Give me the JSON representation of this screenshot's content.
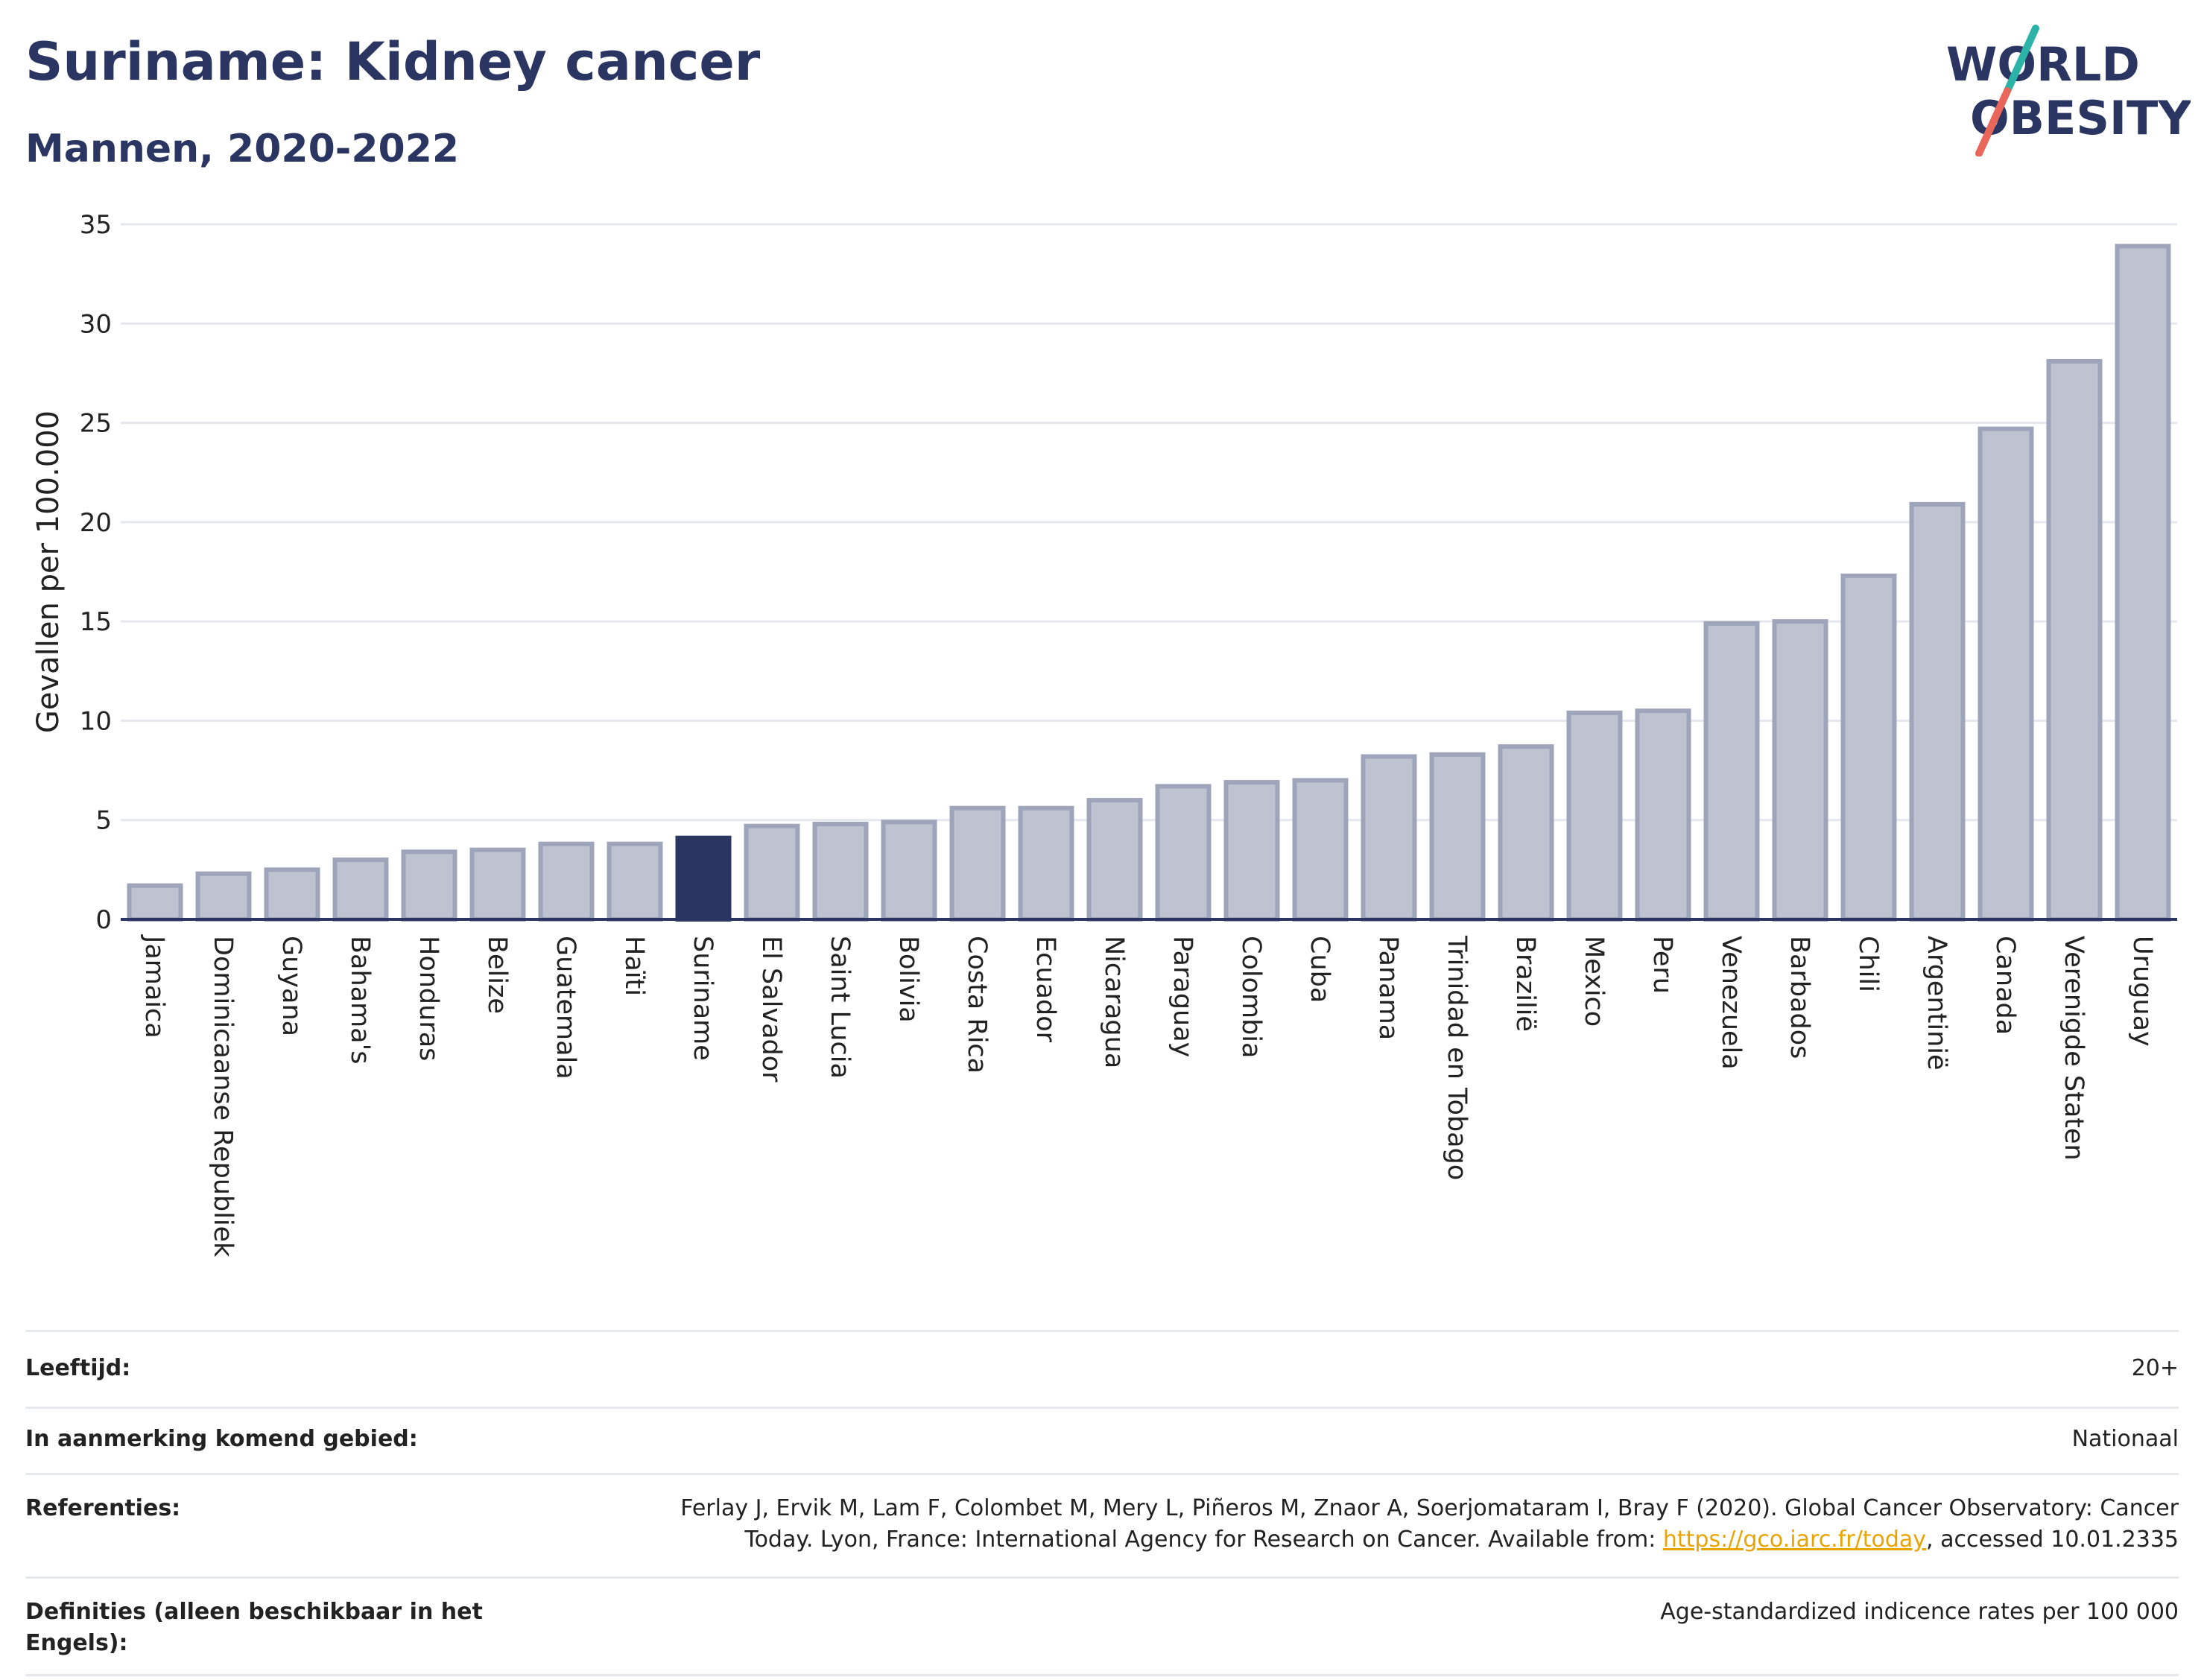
{
  "header": {
    "title": "Suriname: Kidney cancer",
    "subtitle": "Mannen, 2020-2022"
  },
  "logo": {
    "line1": "WORLD",
    "line2": "OBESITY"
  },
  "colors": {
    "bar": "#bfc3d1",
    "bar_stroke": "#9ea4b9",
    "highlight": "#2a3561",
    "grid": "#e5e7ee",
    "axis": "#2a3561",
    "logo_slash_top": "#2ab3a6",
    "logo_slash_bottom": "#e8675a"
  },
  "chart_data": {
    "type": "bar",
    "ylabel": "Gevallen per 100.000",
    "ylim": [
      0,
      35
    ],
    "yticks": [
      0,
      5,
      10,
      15,
      20,
      25,
      30,
      35
    ],
    "grid": true,
    "highlight": "Suriname",
    "categories": [
      "Jamaica",
      "Dominicaanse Republiek",
      "Guyana",
      "Bahama's",
      "Honduras",
      "Belize",
      "Guatemala",
      "Haïti",
      "Suriname",
      "El Salvador",
      "Saint Lucia",
      "Bolivia",
      "Costa Rica",
      "Ecuador",
      "Nicaragua",
      "Paraguay",
      "Colombia",
      "Cuba",
      "Panama",
      "Trinidad en Tobago",
      "Brazilië",
      "Mexico",
      "Peru",
      "Venezuela",
      "Barbados",
      "Chili",
      "Argentinië",
      "Canada",
      "Verenigde Staten",
      "Uruguay"
    ],
    "values": [
      1.7,
      2.3,
      2.5,
      3.0,
      3.4,
      3.5,
      3.8,
      3.8,
      4.1,
      4.7,
      4.8,
      4.9,
      5.6,
      5.6,
      6.0,
      6.7,
      6.9,
      7.0,
      8.2,
      8.3,
      8.7,
      10.4,
      10.5,
      14.9,
      15.0,
      17.3,
      20.9,
      24.7,
      28.1,
      33.9
    ]
  },
  "info": {
    "age_label": "Leeftijd:",
    "age_value": "20+",
    "area_label": "In aanmerking komend gebied:",
    "area_value": "Nationaal",
    "ref_label": "Referenties:",
    "ref_text_1": "Ferlay J, Ervik M, Lam F, Colombet M, Mery L, Piñeros M, Znaor A, Soerjomataram I, Bray F (2020). Global Cancer Observatory: Cancer",
    "ref_text_2": "Today. Lyon, France: International Agency for Research on Cancer. Available from:",
    "ref_link": "https://gco.iarc.fr/today",
    "ref_text_3": ", accessed 10.01.2335",
    "def_label": "Definities (alleen beschikbaar in het Engels):",
    "def_value": "Age-standardized indicence rates per 100 000"
  }
}
